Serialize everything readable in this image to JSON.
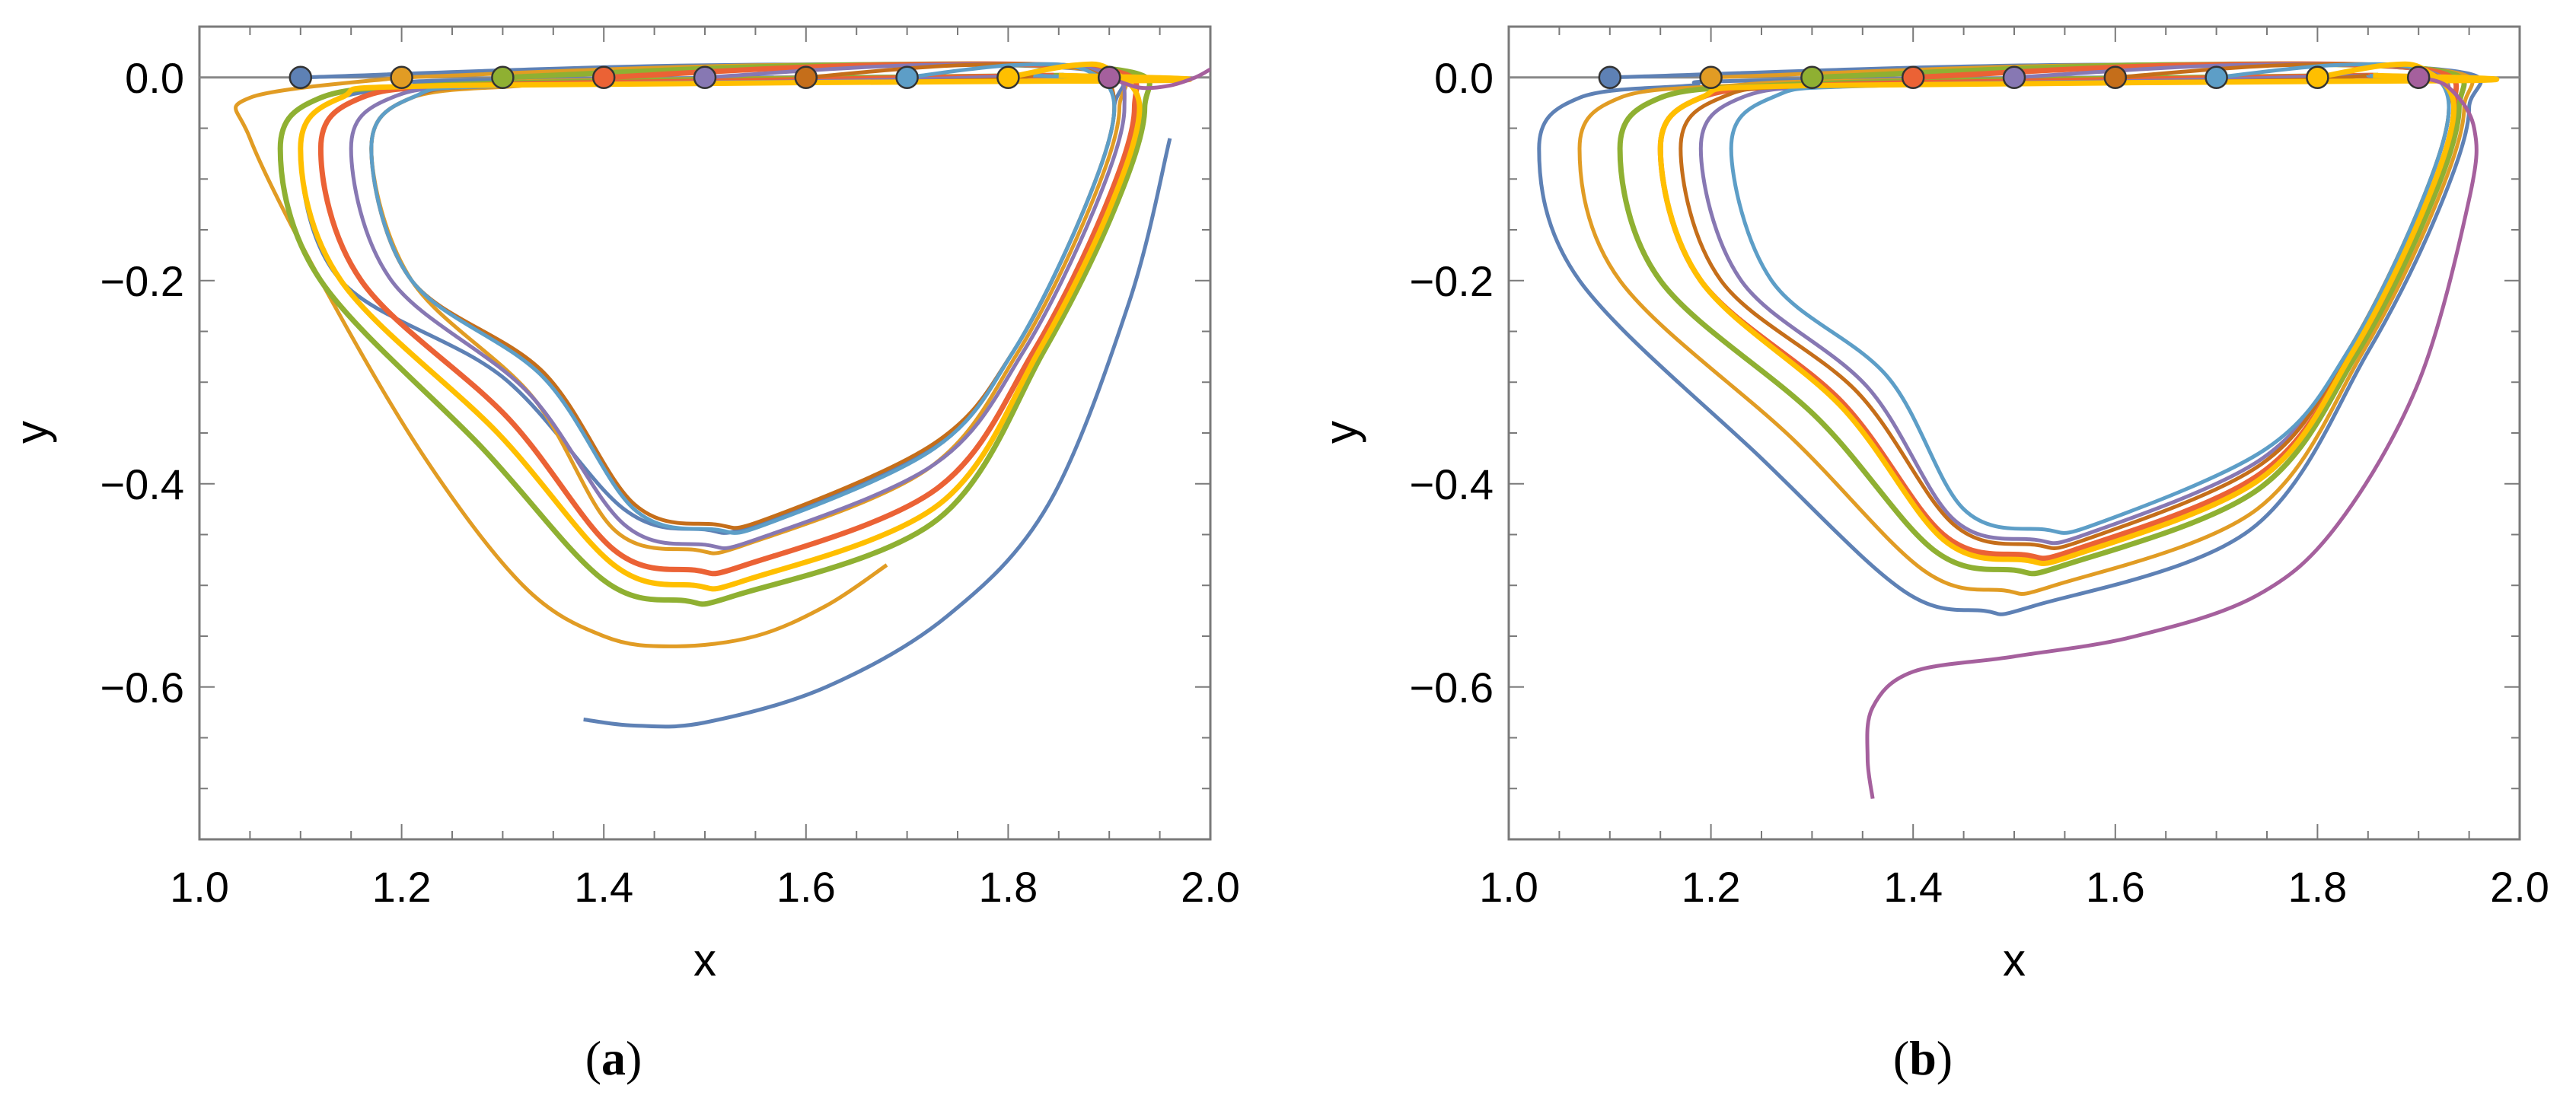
{
  "chart_data": [
    {
      "type": "line",
      "panel_label": "a",
      "xlabel": "x",
      "ylabel": "y",
      "xlim": [
        1.0,
        2.0
      ],
      "ylim": [
        -0.75,
        0.05
      ],
      "xticks": [
        "1.0",
        "1.2",
        "1.4",
        "1.6",
        "1.8",
        "2.0"
      ],
      "yticks": [
        "0.0",
        "−0.2",
        "−0.4",
        "−0.6"
      ],
      "xtick_values": [
        1.0,
        1.2,
        1.4,
        1.6,
        1.8,
        2.0
      ],
      "ytick_values": [
        0.0,
        -0.2,
        -0.4,
        -0.6
      ],
      "baseline_y": 0.0,
      "series": [
        {
          "name": "x0=1.1",
          "color": "#5E81B5",
          "start": [
            1.1,
            0.0
          ],
          "left_x": 1.1,
          "right_x": 1.905,
          "min_x": 1.5,
          "min_y": -0.445,
          "tail_right_x": 1.96,
          "tail_right_y": -0.04,
          "tail": [
            [
              1.96,
              -0.06
            ],
            [
              1.92,
              -0.22
            ],
            [
              1.84,
              -0.42
            ],
            [
              1.74,
              -0.53
            ],
            [
              1.62,
              -0.6
            ],
            [
              1.5,
              -0.635
            ],
            [
              1.43,
              -0.638
            ],
            [
              1.38,
              -0.632
            ]
          ]
        },
        {
          "name": "x0=1.2",
          "color": "#E19C24",
          "start": [
            1.2,
            0.0
          ],
          "left_x": 1.17,
          "right_x": 1.91,
          "min_x": 1.49,
          "min_y": -0.465,
          "tail_left": [
            [
              1.2,
              0.0
            ],
            [
              1.05,
              -0.02
            ],
            [
              1.05,
              -0.06
            ],
            [
              1.12,
              -0.2
            ],
            [
              1.22,
              -0.37
            ],
            [
              1.32,
              -0.5
            ],
            [
              1.4,
              -0.55
            ],
            [
              1.47,
              -0.56
            ],
            [
              1.55,
              -0.55
            ],
            [
              1.62,
              -0.52
            ],
            [
              1.68,
              -0.48
            ]
          ]
        },
        {
          "name": "x0=1.3",
          "color": "#8FB032",
          "start": [
            1.3,
            0.0
          ],
          "left_x": 1.08,
          "right_x": 1.935,
          "min_x": 1.48,
          "min_y": -0.515
        },
        {
          "name": "x0=1.4",
          "color": "#EB6235",
          "start": [
            1.4,
            0.0
          ],
          "left_x": 1.12,
          "right_x": 1.925,
          "min_x": 1.49,
          "min_y": -0.485
        },
        {
          "name": "x0=1.5",
          "color": "#8778B3",
          "start": [
            1.5,
            0.0
          ],
          "left_x": 1.15,
          "right_x": 1.915,
          "min_x": 1.5,
          "min_y": -0.46
        },
        {
          "name": "x0=1.6",
          "color": "#C56E1A",
          "start": [
            1.6,
            0.0
          ],
          "left_x": 1.17,
          "right_x": 1.905,
          "min_x": 1.51,
          "min_y": -0.44
        },
        {
          "name": "x0=1.7",
          "color": "#5D9EC7",
          "start": [
            1.7,
            0.0
          ],
          "left_x": 1.17,
          "right_x": 1.905,
          "min_x": 1.51,
          "min_y": -0.445
        },
        {
          "name": "x0=1.8",
          "color": "#FFBF00",
          "start": [
            1.8,
            0.0
          ],
          "left_x": 1.1,
          "right_x": 1.93,
          "min_x": 1.49,
          "min_y": -0.5
        },
        {
          "name": "x0=1.9",
          "color": "#A5609D",
          "start": [
            1.9,
            0.0
          ],
          "tail_right": [
            [
              1.9,
              0.0
            ],
            [
              1.93,
              -0.01
            ],
            [
              1.96,
              -0.008
            ],
            [
              1.985,
              0.0
            ],
            [
              2.0,
              0.008
            ]
          ]
        }
      ]
    },
    {
      "type": "line",
      "panel_label": "b",
      "xlabel": "x",
      "ylabel": "y",
      "xlim": [
        1.0,
        2.0
      ],
      "ylim": [
        -0.75,
        0.05
      ],
      "xticks": [
        "1.0",
        "1.2",
        "1.4",
        "1.6",
        "1.8",
        "2.0"
      ],
      "yticks": [
        "0.0",
        "−0.2",
        "−0.4",
        "−0.6"
      ],
      "xtick_values": [
        1.0,
        1.2,
        1.4,
        1.6,
        1.8,
        2.0
      ],
      "ytick_values": [
        0.0,
        -0.2,
        -0.4,
        -0.6
      ],
      "baseline_y": 0.0,
      "series": [
        {
          "name": "x0=1.1",
          "color": "#5E81B5",
          "start": [
            1.1,
            0.0
          ],
          "left_x": 1.03,
          "right_x": 1.95,
          "min_x": 1.47,
          "min_y": -0.525
        },
        {
          "name": "x0=1.2",
          "color": "#E19C24",
          "start": [
            1.2,
            0.0
          ],
          "left_x": 1.07,
          "right_x": 1.945,
          "min_x": 1.49,
          "min_y": -0.505
        },
        {
          "name": "x0=1.3",
          "color": "#8FB032",
          "start": [
            1.3,
            0.0
          ],
          "left_x": 1.11,
          "right_x": 1.94,
          "min_x": 1.5,
          "min_y": -0.485
        },
        {
          "name": "x0=1.4",
          "color": "#EB6235",
          "start": [
            1.4,
            0.0
          ],
          "left_x": 1.15,
          "right_x": 1.935,
          "min_x": 1.51,
          "min_y": -0.47
        },
        {
          "name": "x0=1.5",
          "color": "#8778B3",
          "start": [
            1.5,
            0.0
          ],
          "left_x": 1.19,
          "right_x": 1.93,
          "min_x": 1.52,
          "min_y": -0.455
        },
        {
          "name": "x0=1.6",
          "color": "#C56E1A",
          "start": [
            1.6,
            0.0
          ],
          "left_x": 1.17,
          "right_x": 1.93,
          "min_x": 1.52,
          "min_y": -0.46
        },
        {
          "name": "x0=1.7",
          "color": "#5D9EC7",
          "start": [
            1.7,
            0.0
          ],
          "left_x": 1.22,
          "right_x": 1.93,
          "min_x": 1.53,
          "min_y": -0.445
        },
        {
          "name": "x0=1.8",
          "color": "#FFBF00",
          "start": [
            1.8,
            0.0
          ],
          "left_x": 1.15,
          "right_x": 1.935,
          "min_x": 1.51,
          "min_y": -0.475
        },
        {
          "name": "x0=1.9",
          "color": "#A5609D",
          "start": [
            1.9,
            0.0
          ],
          "tail_right": [
            [
              1.9,
              0.0
            ],
            [
              1.93,
              -0.01
            ],
            [
              1.955,
              -0.05
            ],
            [
              1.95,
              -0.12
            ],
            [
              1.9,
              -0.3
            ],
            [
              1.82,
              -0.44
            ],
            [
              1.74,
              -0.51
            ],
            [
              1.62,
              -0.55
            ],
            [
              1.5,
              -0.57
            ],
            [
              1.4,
              -0.585
            ],
            [
              1.36,
              -0.62
            ],
            [
              1.355,
              -0.67
            ],
            [
              1.36,
              -0.71
            ]
          ]
        }
      ]
    }
  ]
}
